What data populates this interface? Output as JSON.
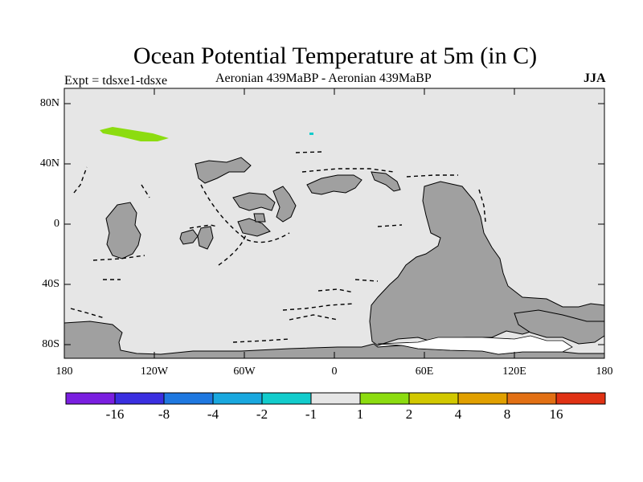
{
  "title": "Ocean Potential Temperature at 5m (in C)",
  "experiment": "Expt = tdsxe1-tdsxe",
  "subtitle": "Aeronian 439MaBP - Aeronian 439MaBP",
  "season": "JJA",
  "latitude_labels": [
    "80N",
    "40N",
    "0",
    "40S",
    "80S"
  ],
  "longitude_labels": [
    "180",
    "120W",
    "60W",
    "0",
    "60E",
    "120E",
    "180"
  ],
  "colorbar": {
    "colors": [
      "#7a1fe0",
      "#3a2fe0",
      "#1f78e0",
      "#19a8df",
      "#12cccc",
      "#e6e6e6",
      "#8cdc10",
      "#d2c800",
      "#e1a000",
      "#e27014",
      "#e03214"
    ],
    "labels": [
      "-16",
      "-8",
      "-4",
      "-2",
      "-1",
      "1",
      "2",
      "4",
      "8",
      "16"
    ]
  },
  "colors": {
    "ocean": "#e6e6e6",
    "land": "#a0a0a0",
    "anomaly_positive": "#8cdc10"
  }
}
